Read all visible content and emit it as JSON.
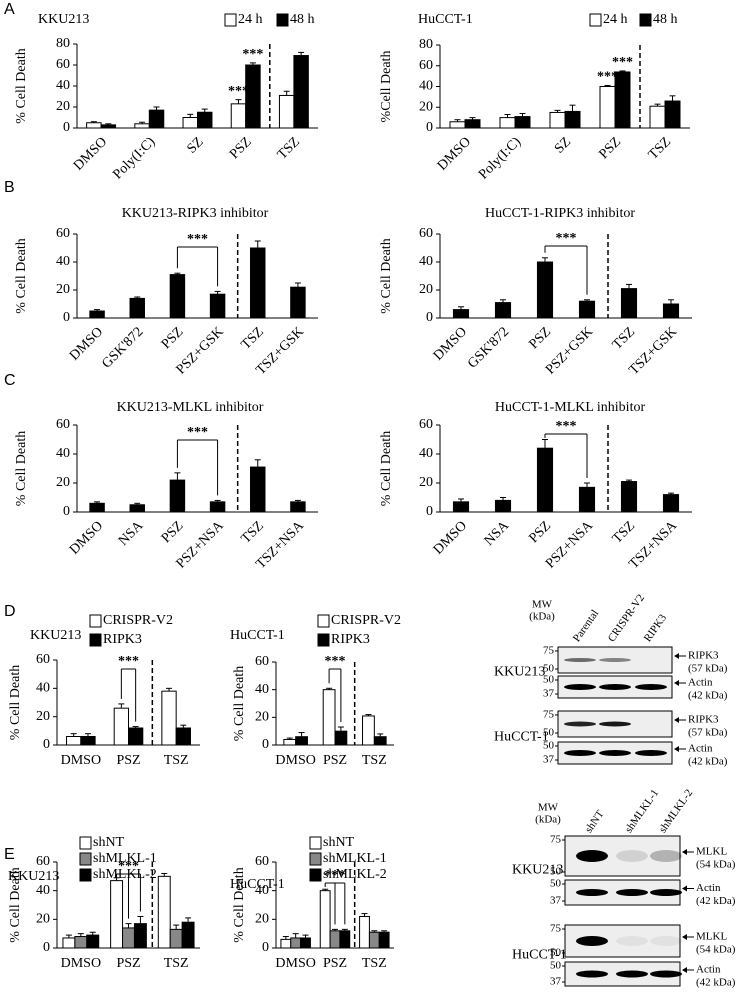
{
  "panel_labels": [
    "A",
    "B",
    "C",
    "D",
    "E"
  ],
  "chart_data": [
    {
      "type": "bar",
      "title": "KKU213",
      "ylabel": "% Cell Death",
      "categories": [
        "DMSO",
        "Poly(I:C)",
        "SZ",
        "PSZ",
        "TSZ"
      ],
      "series": [
        {
          "name": "24 h",
          "color": "#ffffff",
          "values": [
            5,
            4,
            10,
            23,
            31
          ],
          "errors": [
            1,
            1.5,
            3,
            4,
            4
          ]
        },
        {
          "name": "48 h",
          "color": "#000000",
          "values": [
            3,
            17,
            15,
            60,
            69
          ],
          "errors": [
            1,
            3,
            3,
            2,
            3
          ]
        }
      ],
      "ylim": [
        0,
        80
      ],
      "yticks": [
        0,
        20,
        40,
        60,
        80
      ],
      "annotations": [
        "***",
        "***"
      ]
    },
    {
      "type": "bar",
      "title": "HuCCT-1",
      "ylabel": "%Cell Death",
      "categories": [
        "DMSO",
        "Poly(I:C)",
        "SZ",
        "PSZ",
        "TSZ"
      ],
      "series": [
        {
          "name": "24 h",
          "color": "#ffffff",
          "values": [
            6,
            10,
            15,
            40,
            21
          ],
          "errors": [
            2,
            3,
            2,
            1,
            2
          ]
        },
        {
          "name": "48 h",
          "color": "#000000",
          "values": [
            8,
            11,
            16,
            54,
            26
          ],
          "errors": [
            2,
            3,
            6,
            1,
            5
          ]
        }
      ],
      "ylim": [
        0,
        80
      ],
      "yticks": [
        0,
        20,
        40,
        60,
        80
      ],
      "annotations": [
        "***",
        "***"
      ]
    },
    {
      "type": "bar",
      "title": "KKU213-RIPK3  inhibitor",
      "ylabel": "% Cell Death",
      "categories": [
        "DMSO",
        "GSK'872",
        "PSZ",
        "PSZ+GSK",
        "TSZ",
        "TSZ+GSK"
      ],
      "series": [
        {
          "name": null,
          "color": "#000000",
          "values": [
            5,
            14,
            31,
            17,
            50,
            22
          ],
          "errors": [
            1,
            1,
            1,
            2,
            5,
            3
          ]
        }
      ],
      "ylim": [
        0,
        60
      ],
      "yticks": [
        0,
        20,
        40,
        60
      ],
      "annotations": [
        "***"
      ]
    },
    {
      "type": "bar",
      "title": "HuCCT-1-RIPK3 inhibitor",
      "ylabel": "% Cell Death",
      "categories": [
        "DMSO",
        "GSK'872",
        "PSZ",
        "PSZ+GSK",
        "TSZ",
        "TSZ+GSK"
      ],
      "series": [
        {
          "name": null,
          "color": "#000000",
          "values": [
            6,
            11,
            40,
            12,
            21,
            10
          ],
          "errors": [
            2,
            2,
            3,
            1,
            3,
            3
          ]
        }
      ],
      "ylim": [
        0,
        60
      ],
      "yticks": [
        0,
        20,
        40,
        60
      ],
      "annotations": [
        "***"
      ]
    },
    {
      "type": "bar",
      "title": "KKU213-MLKL  inhibitor",
      "ylabel": "% Cell Death",
      "categories": [
        "DMSO",
        "NSA",
        "PSZ",
        "PSZ+NSA",
        "TSZ",
        "TSZ+NSA"
      ],
      "series": [
        {
          "name": null,
          "color": "#000000",
          "values": [
            6,
            5,
            22,
            7,
            31,
            7
          ],
          "errors": [
            1,
            1,
            5,
            1,
            5,
            1
          ]
        }
      ],
      "ylim": [
        0,
        60
      ],
      "yticks": [
        0,
        20,
        40,
        60
      ],
      "annotations": [
        "***"
      ]
    },
    {
      "type": "bar",
      "title": "HuCCT-1-MLKL  inhibitor",
      "ylabel": "% Cell Death",
      "categories": [
        "DMSO",
        "NSA",
        "PSZ",
        "PSZ+NSA",
        "TSZ",
        "TSZ+NSA"
      ],
      "series": [
        {
          "name": null,
          "color": "#000000",
          "values": [
            7,
            8,
            44,
            17,
            21,
            12
          ],
          "errors": [
            2,
            2,
            6,
            3,
            1,
            1
          ]
        }
      ],
      "ylim": [
        0,
        60
      ],
      "yticks": [
        0,
        20,
        40,
        60
      ],
      "annotations": [
        "***"
      ]
    },
    {
      "type": "bar",
      "title": "KKU213",
      "ylabel": "% Cell Death",
      "categories": [
        "DMSO",
        "PSZ",
        "TSZ"
      ],
      "series": [
        {
          "name": "CRISPR-V2",
          "color": "#ffffff",
          "values": [
            6,
            26,
            38
          ],
          "errors": [
            2,
            3,
            2
          ]
        },
        {
          "name": "RIPK3",
          "color": "#000000",
          "values": [
            6,
            12,
            12
          ],
          "errors": [
            2,
            1,
            2
          ]
        }
      ],
      "ylim": [
        0,
        60
      ],
      "yticks": [
        0,
        20,
        40,
        60
      ],
      "annotations": [
        "***"
      ]
    },
    {
      "type": "bar",
      "title": "HuCCT-1",
      "ylabel": "% Cell Death",
      "categories": [
        "DMSO",
        "PSZ",
        "TSZ"
      ],
      "series": [
        {
          "name": "CRISPR-V2",
          "color": "#ffffff",
          "values": [
            4,
            40,
            21
          ],
          "errors": [
            1,
            1,
            1
          ]
        },
        {
          "name": "RIPK3",
          "color": "#000000",
          "values": [
            6,
            10,
            6
          ],
          "errors": [
            3,
            3,
            2
          ]
        }
      ],
      "ylim": [
        0,
        60
      ],
      "yticks": [
        0,
        20,
        40,
        60
      ],
      "annotations": [
        "***"
      ]
    },
    {
      "type": "bar",
      "title": "KKU213",
      "ylabel": "% Cell Death",
      "categories": [
        "DMSO",
        "PSZ",
        "TSZ"
      ],
      "series": [
        {
          "name": "shNT",
          "color": "#ffffff",
          "values": [
            7,
            47,
            50
          ],
          "errors": [
            2,
            2,
            2
          ]
        },
        {
          "name": "shMLKL-1",
          "color": "#888888",
          "values": [
            8,
            14,
            13
          ],
          "errors": [
            2,
            3,
            3
          ]
        },
        {
          "name": "shMLKL-2",
          "color": "#000000",
          "values": [
            9,
            17,
            18
          ],
          "errors": [
            2,
            5,
            3
          ]
        }
      ],
      "ylim": [
        0,
        60
      ],
      "yticks": [
        0,
        20,
        40,
        60
      ],
      "annotations": [
        "***"
      ]
    },
    {
      "type": "bar",
      "title": "HuCCT-1",
      "ylabel": "% Cell Death",
      "categories": [
        "DMSO",
        "PSZ",
        "TSZ"
      ],
      "series": [
        {
          "name": "shNT",
          "color": "#ffffff",
          "values": [
            6,
            40,
            22
          ],
          "errors": [
            2,
            1,
            2
          ]
        },
        {
          "name": "shMLKL-1",
          "color": "#888888",
          "values": [
            7,
            12,
            11
          ],
          "errors": [
            3,
            1,
            1
          ]
        },
        {
          "name": "shMLKL-2",
          "color": "#000000",
          "values": [
            7,
            12,
            11
          ],
          "errors": [
            2,
            1,
            1
          ]
        }
      ],
      "ylim": [
        0,
        60
      ],
      "yticks": [
        0,
        20,
        40,
        60
      ],
      "annotations": [
        "***"
      ]
    }
  ],
  "blots": [
    {
      "mw_label": "MW",
      "mw_unit": "(kDa)",
      "lanes": [
        "Parental",
        "CRISPR-V2",
        "RIPK3"
      ],
      "cell_lines": [
        {
          "name": "KKU213",
          "rows": [
            {
              "markers": [
                75,
                50
              ],
              "protein": "RIPK3",
              "size": "(57  kDa)"
            },
            {
              "markers": [
                50,
                37
              ],
              "protein": "Actin",
              "size": "(42 kDa)"
            }
          ]
        },
        {
          "name": "HuCCT-1",
          "rows": [
            {
              "markers": [
                75,
                50
              ],
              "protein": "RIPK3",
              "size": "(57  kDa)"
            },
            {
              "markers": [
                50,
                37
              ],
              "protein": "Actin",
              "size": "(42 kDa)"
            }
          ]
        }
      ]
    },
    {
      "mw_label": "MW",
      "mw_unit": "(kDa)",
      "lanes": [
        "shNT",
        "shMLKL-1",
        "shMLKL-2"
      ],
      "cell_lines": [
        {
          "name": "KKU213",
          "rows": [
            {
              "markers": [
                75,
                50
              ],
              "protein": "MLKL",
              "size": "(54 kDa)"
            },
            {
              "markers": [
                50,
                37
              ],
              "protein": "Actin",
              "size": "(42 kDa)"
            }
          ]
        },
        {
          "name": "HuCCT-1",
          "rows": [
            {
              "markers": [
                75,
                50
              ],
              "protein": "MLKL",
              "size": "(54 kDa)"
            },
            {
              "markers": [
                50,
                37
              ],
              "protein": "Actin",
              "size": "(42 kDa)"
            }
          ]
        }
      ]
    }
  ]
}
